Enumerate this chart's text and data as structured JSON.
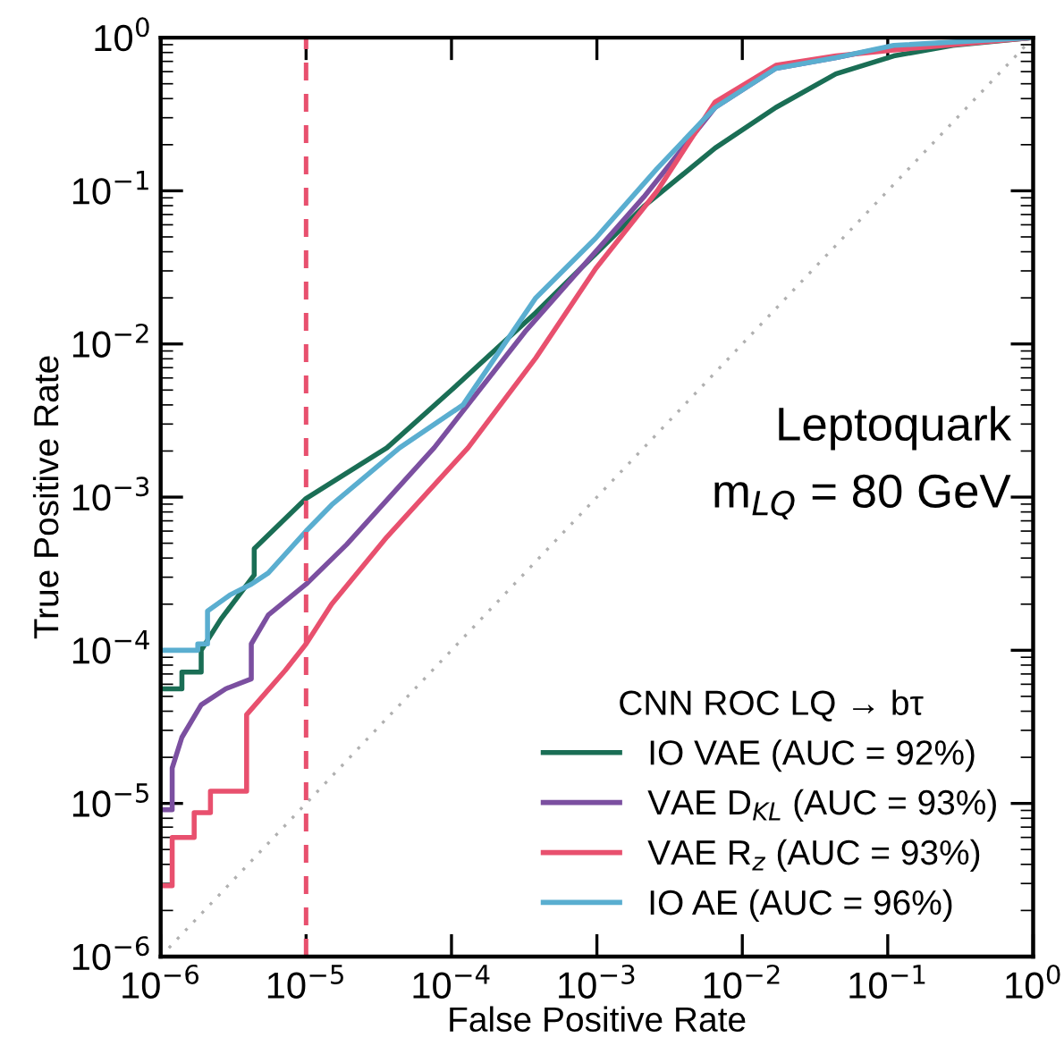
{
  "chart_data": {
    "type": "line",
    "xlabel": "False Positive Rate",
    "ylabel": "True Positive Rate",
    "log": "xy",
    "legend_title": "CNN ROC LQ → bτ",
    "legend": "bottom right",
    "grid": false,
    "marker": "none",
    "xlim": [
      1e-06,
      1
    ],
    "ylim": [
      1e-06,
      1
    ],
    "xticks": [
      {
        "value": 1e-06,
        "label": "10$^{−6}$"
      },
      {
        "value": 1e-05,
        "label": "10$^{−5}$"
      },
      {
        "value": 0.0001,
        "label": "10$^{−4}$"
      },
      {
        "value": 0.001,
        "label": "10$^{−3}$"
      },
      {
        "value": 0.01,
        "label": "10$^{−2}$"
      },
      {
        "value": 0.1,
        "label": "10$^{−1}$"
      },
      {
        "value": 1,
        "label": "10$^{0}$"
      }
    ],
    "yticks": [
      {
        "value": 1e-06,
        "label": "10$^{−6}$"
      },
      {
        "value": 1e-05,
        "label": "10$^{−5}$"
      },
      {
        "value": 0.0001,
        "label": "10$^{−4}$"
      },
      {
        "value": 0.001,
        "label": "10$^{−3}$"
      },
      {
        "value": 0.01,
        "label": "10$^{−2}$"
      },
      {
        "value": 0.1,
        "label": "10$^{−1}$"
      },
      {
        "value": 1,
        "label": "10$^{0}$"
      }
    ],
    "annotations": [
      "Leptoquark",
      "m$_{LQ}$ = 80 GeV"
    ],
    "ref_lines": [
      {
        "axis": "x",
        "value": 1e-05,
        "color": "#e8506e",
        "line_style": "dashed"
      }
    ],
    "series": [
      {
        "name": "IO VAE (AUC = 92%)",
        "color": "#1a6e55",
        "line_style": "solid",
        "x": [
          1e-06,
          1.4e-06,
          1.4e-06,
          1.9e-06,
          1.9e-06,
          2.6e-06,
          4.4e-06,
          4.4e-06,
          1e-05,
          3.6e-05,
          0.0001,
          0.00038,
          0.0021,
          0.0065,
          0.017,
          0.044,
          0.11,
          0.28,
          1
        ],
        "values": [
          5.6e-05,
          5.6e-05,
          7.2e-05,
          7.2e-05,
          0.0001,
          0.00016,
          0.00031,
          0.00046,
          0.00098,
          0.0021,
          0.005,
          0.016,
          0.079,
          0.19,
          0.35,
          0.58,
          0.76,
          0.89,
          1
        ]
      },
      {
        "name": "VAE D$_{KL}$ (AUC = 93%)",
        "color": "#7b4fa0",
        "line_style": "solid",
        "x": [
          1e-06,
          1.2e-06,
          1.2e-06,
          1.4e-06,
          1.9e-06,
          2.8e-06,
          4.2e-06,
          4.2e-06,
          5.5e-06,
          1e-05,
          1.9e-05,
          7.6e-05,
          0.00032,
          0.0021,
          0.0065,
          0.017,
          0.044,
          0.11,
          1
        ],
        "values": [
          9.1e-06,
          9.1e-06,
          1.7e-05,
          2.7e-05,
          4.4e-05,
          5.6e-05,
          6.5e-05,
          0.00011,
          0.00017,
          0.00027,
          0.00049,
          0.0021,
          0.012,
          0.091,
          0.35,
          0.63,
          0.74,
          0.88,
          1
        ]
      },
      {
        "name": "VAE R$_{z}$ (AUC = 93%)",
        "color": "#e8506e",
        "line_style": "solid",
        "x": [
          1e-06,
          1.2e-06,
          1.2e-06,
          1.7e-06,
          1.7e-06,
          2.2e-06,
          2.2e-06,
          3.9e-06,
          3.9e-06,
          7.2e-06,
          1e-05,
          1.5e-05,
          3.6e-05,
          0.00013,
          0.00038,
          0.00098,
          0.0026,
          0.0065,
          0.017,
          0.044,
          0.11,
          1
        ],
        "values": [
          2.9e-06,
          2.9e-06,
          6e-06,
          6e-06,
          8.7e-06,
          8.7e-06,
          1.2e-05,
          1.2e-05,
          3.8e-05,
          7.4e-05,
          0.00011,
          0.0002,
          0.00055,
          0.0021,
          0.0081,
          0.031,
          0.1,
          0.38,
          0.66,
          0.76,
          0.83,
          1
        ]
      },
      {
        "name": "IO AE (AUC = 96%)",
        "color": "#5aaed0",
        "line_style": "solid",
        "x": [
          1e-06,
          1.8e-06,
          1.8e-06,
          2.1e-06,
          2.1e-06,
          3e-06,
          4.2e-06,
          5.5e-06,
          1e-05,
          1.5e-05,
          4.4e-05,
          0.00012,
          0.00038,
          0.00098,
          0.0026,
          0.0065,
          0.017,
          0.044,
          0.11,
          1
        ],
        "values": [
          0.0001,
          0.0001,
          0.00011,
          0.00011,
          0.00018,
          0.00023,
          0.00027,
          0.00032,
          0.0006,
          0.00089,
          0.0021,
          0.004,
          0.02,
          0.049,
          0.14,
          0.35,
          0.63,
          0.74,
          0.89,
          1
        ]
      },
      {
        "color": "#b0b0b0",
        "line_style": "dotted",
        "x": [
          1e-06,
          1
        ],
        "values": [
          1e-06,
          1
        ]
      }
    ]
  }
}
